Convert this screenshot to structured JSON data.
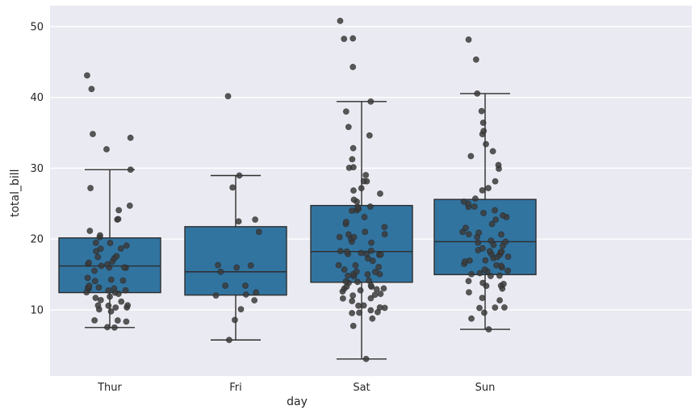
{
  "figure": {
    "background": "#ffffff",
    "axes_background": "#eaeaf2",
    "grid_color": "#ffffff",
    "box_fill": "#3274a0",
    "box_edge": "#2d2d2d",
    "point_color": "#3c3c3c",
    "tick_color": "#262626"
  },
  "chart_data": {
    "type": "boxplot+strip",
    "title": "",
    "xlabel": "day",
    "ylabel": "total_bill",
    "categories": [
      "Thur",
      "Fri",
      "Sat",
      "Sun"
    ],
    "yticks": [
      10,
      20,
      30,
      40,
      50
    ],
    "ylim": [
      0.65,
      52.96
    ],
    "grid": true,
    "legend": false,
    "boxes": [
      {
        "category": "Thur",
        "whisker_low": 7.51,
        "q1": 12.44,
        "median": 16.2,
        "q3": 20.16,
        "whisker_high": 29.8,
        "outliers": [
          32.68,
          34.3,
          34.83,
          41.19,
          43.11
        ]
      },
      {
        "category": "Fri",
        "whisker_low": 5.75,
        "q1": 12.09,
        "median": 15.38,
        "q3": 21.75,
        "whisker_high": 28.97,
        "outliers": [
          40.17
        ]
      },
      {
        "category": "Sat",
        "whisker_low": 3.07,
        "q1": 13.9,
        "median": 18.24,
        "q3": 24.74,
        "whisker_high": 39.42,
        "outliers": [
          44.3,
          48.27,
          48.33,
          50.81
        ]
      },
      {
        "category": "Sun",
        "whisker_low": 7.25,
        "q1": 14.98,
        "median": 19.63,
        "q3": 25.6,
        "whisker_high": 40.55,
        "outliers": [
          45.35,
          48.17
        ]
      }
    ],
    "points": {
      "Thur": [
        7.51,
        7.56,
        8.35,
        8.51,
        8.52,
        9.78,
        10.07,
        10.33,
        10.34,
        10.59,
        10.63,
        10.65,
        11.17,
        11.38,
        11.69,
        11.87,
        12.26,
        12.43,
        12.48,
        12.74,
        12.76,
        13.0,
        13.03,
        13.13,
        13.16,
        13.42,
        14.07,
        14.15,
        14.26,
        14.52,
        15.53,
        15.95,
        15.98,
        16.0,
        16.21,
        16.43,
        16.49,
        16.66,
        16.82,
        17.29,
        17.47,
        17.59,
        18.28,
        18.64,
        18.66,
        19.08,
        19.44,
        19.47,
        20.27,
        20.53,
        21.16,
        22.76,
        22.82,
        24.08,
        24.71,
        27.2,
        29.8,
        32.68,
        34.3,
        34.83,
        41.19,
        43.11
      ],
      "Fri": [
        5.75,
        8.58,
        10.09,
        11.35,
        12.03,
        12.16,
        12.46,
        13.42,
        13.42,
        15.38,
        15.98,
        16.27,
        16.32,
        21.01,
        22.49,
        22.75,
        27.28,
        28.97,
        40.17
      ],
      "Sat": [
        3.07,
        7.74,
        8.77,
        9.55,
        9.6,
        9.68,
        9.94,
        10.29,
        10.34,
        10.59,
        10.63,
        11.24,
        11.61,
        11.64,
        12.03,
        12.13,
        12.26,
        12.6,
        12.76,
        12.9,
        13.0,
        13.03,
        13.27,
        13.28,
        13.42,
        13.81,
        13.94,
        14.0,
        14.15,
        14.73,
        14.83,
        15.01,
        15.04,
        15.06,
        15.36,
        15.42,
        15.69,
        16.04,
        16.29,
        16.31,
        16.93,
        17.26,
        17.78,
        17.81,
        17.89,
        17.92,
        18.04,
        18.24,
        18.29,
        18.35,
        19.49,
        19.65,
        20.08,
        20.27,
        20.29,
        20.65,
        20.69,
        21.01,
        21.7,
        22.12,
        22.42,
        23.1,
        24.01,
        24.06,
        24.27,
        24.55,
        24.59,
        25.28,
        25.56,
        26.41,
        26.86,
        27.18,
        28.15,
        28.17,
        29.03,
        30.06,
        30.14,
        31.27,
        32.83,
        34.63,
        35.83,
        38.01,
        39.42,
        44.3,
        48.27,
        48.33,
        50.81
      ],
      "Sun": [
        7.25,
        8.77,
        9.6,
        10.27,
        10.33,
        10.34,
        11.35,
        11.69,
        12.48,
        13.0,
        13.39,
        13.42,
        13.66,
        13.81,
        14.07,
        14.78,
        14.83,
        15.04,
        15.18,
        15.42,
        15.53,
        15.69,
        16.0,
        16.21,
        16.29,
        16.49,
        16.82,
        16.97,
        16.99,
        17.31,
        17.46,
        17.51,
        17.81,
        17.92,
        18.15,
        18.24,
        18.29,
        18.43,
        18.69,
        19.08,
        19.17,
        19.49,
        19.63,
        19.77,
        20.29,
        20.65,
        20.69,
        20.9,
        21.01,
        21.58,
        22.12,
        22.74,
        23.1,
        23.33,
        23.68,
        24.06,
        24.55,
        24.59,
        25.0,
        25.29,
        25.71,
        26.88,
        27.2,
        28.15,
        29.93,
        30.46,
        31.71,
        32.4,
        33.41,
        34.81,
        35.26,
        36.42,
        38.07,
        40.55,
        45.35,
        48.17
      ]
    }
  }
}
